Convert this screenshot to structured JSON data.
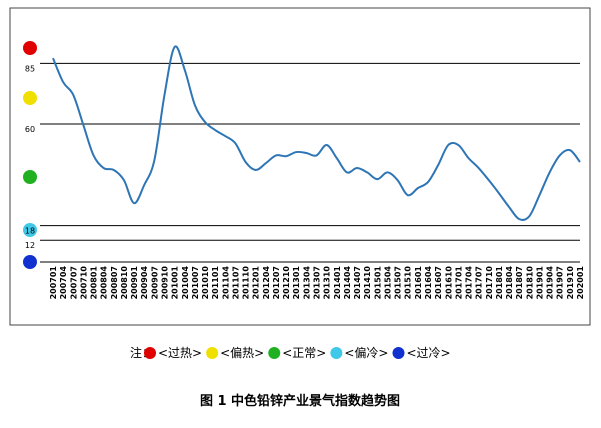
{
  "chart_data": {
    "type": "line",
    "categories": [
      "200701",
      "200704",
      "200707",
      "200710",
      "200801",
      "200804",
      "200807",
      "200810",
      "200901",
      "200904",
      "200907",
      "200910",
      "201001",
      "201004",
      "201007",
      "201010",
      "201101",
      "201104",
      "201107",
      "201110",
      "201201",
      "201204",
      "201207",
      "201210",
      "201301",
      "201304",
      "201307",
      "201310",
      "201401",
      "201404",
      "201407",
      "201410",
      "201501",
      "201504",
      "201507",
      "201510",
      "201601",
      "201604",
      "201607",
      "201610",
      "201701",
      "201704",
      "201707",
      "201710",
      "201801",
      "201804",
      "201807",
      "201810",
      "201901",
      "201904",
      "201907",
      "201910",
      "202001"
    ],
    "series": [
      {
        "color": "#2e75b6",
        "values": [
          87.2,
          77.3,
          72,
          59.5,
          47,
          41.8,
          41,
          36.8,
          27.3,
          34.8,
          45,
          72,
          91.8,
          82.3,
          67.8,
          60.8,
          57.5,
          55,
          52,
          44.3,
          41,
          43.8,
          47,
          46.7,
          48.4,
          48,
          47,
          51.3,
          45.9,
          40,
          41.8,
          40,
          37.2,
          40,
          36.8,
          30.6,
          33.5,
          36,
          43,
          51.3,
          51.3,
          45.9,
          41.8,
          36.8,
          31.4,
          25.7,
          20.7,
          21.9,
          30.6,
          40,
          47,
          49.2,
          44.3
        ]
      }
    ],
    "ylim": [
      3,
      105
    ],
    "yticks": [
      85,
      60,
      18,
      12
    ],
    "grid": true,
    "note": {
      "prefix": "注：",
      "items": [
        {
          "color": "#e00000",
          "label": "<过热>"
        },
        {
          "color": "#f0e000",
          "label": "<偏热>"
        },
        {
          "color": "#20b020",
          "label": "<正常>"
        },
        {
          "color": "#40c8e8",
          "label": "<偏冷>"
        },
        {
          "color": "#1030d0",
          "label": "<过冷>"
        }
      ]
    },
    "caption": "图 1   中色铅锌产业景气指数趋势图"
  }
}
